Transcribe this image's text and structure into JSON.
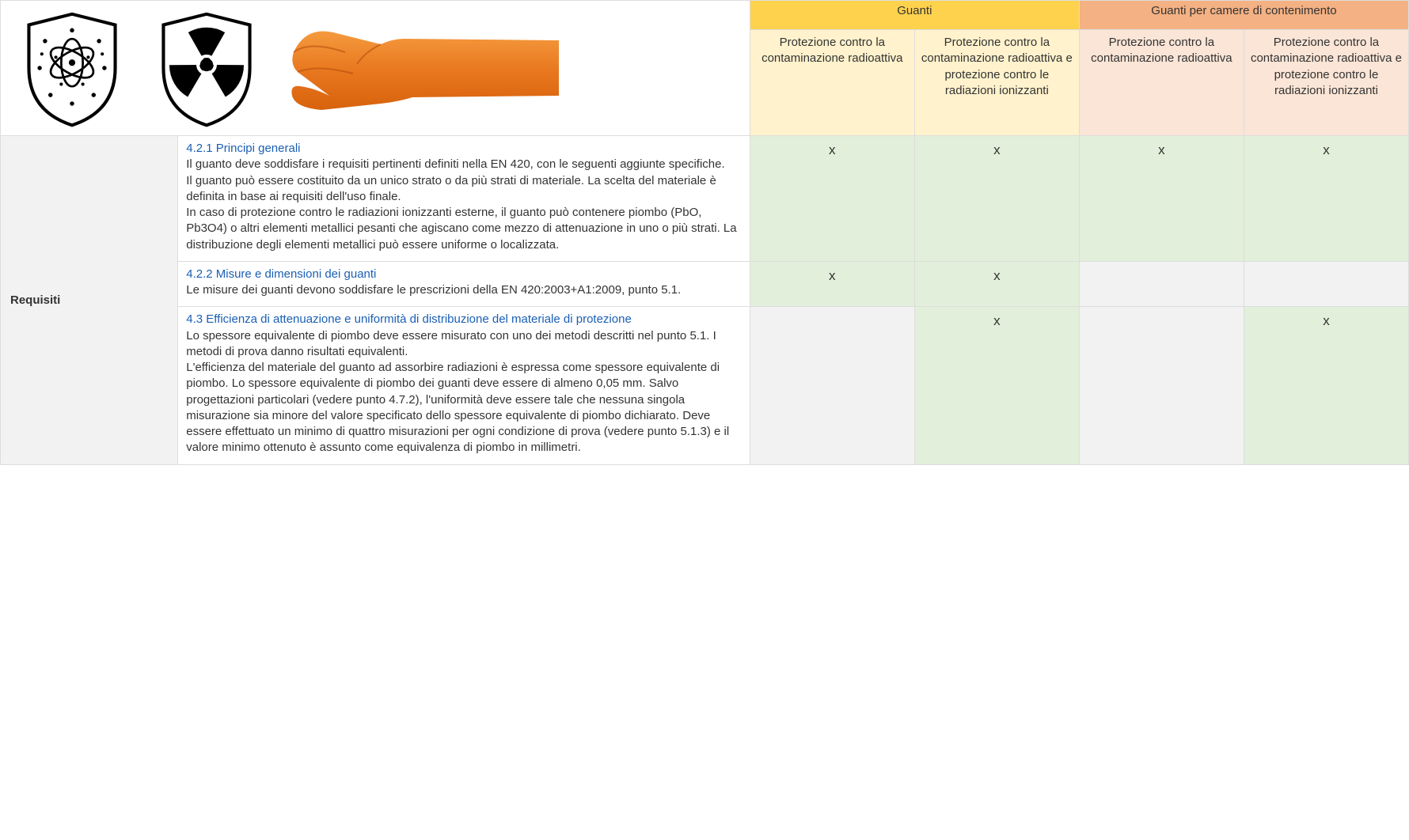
{
  "colors": {
    "group1_bg": "#ffd24d",
    "group2_bg": "#f4b183",
    "sub1_bg": "#fff2cc",
    "sub2_bg": "#fbe5d6",
    "yes_bg": "#e2efda",
    "no_bg": "#f2f2f2",
    "border": "#dddddd",
    "link": "#1a5fb4"
  },
  "columns": {
    "label_w": 180,
    "desc_w": 580,
    "data_w": 167
  },
  "headers": {
    "group1": "Guanti",
    "group2": "Guanti per camere di contenimento",
    "sub_a": "Protezione contro la contaminazione radioattiva",
    "sub_b": "Protezione contro la contaminazione radioattiva e protezione contro le radiazioni ionizzanti"
  },
  "row_label": "Requisiti",
  "mark_char": "x",
  "rows": [
    {
      "title": "4.2.1 Principi generali",
      "body": "Il guanto deve soddisfare i requisiti pertinenti definiti nella EN 420, con le seguenti aggiunte specifiche.\nIl guanto può essere costituito da un unico strato o da più strati di materiale. La scelta del materiale è definita in base ai requisiti dell'uso finale.\nIn caso di protezione contro le radiazioni ionizzanti esterne, il guanto può contenere piombo (PbO, Pb3O4) o altri elementi metallici pesanti che agiscano come mezzo di attenuazione in uno o più strati. La distribuzione degli elementi metallici può essere uniforme o localizzata.",
      "cells": [
        true,
        true,
        true,
        true
      ]
    },
    {
      "title": "4.2.2 Misure e dimensioni dei guanti",
      "body": "Le misure dei guanti devono soddisfare le prescrizioni della EN 420:2003+A1:2009, punto 5.1.",
      "cells": [
        true,
        true,
        false,
        false
      ]
    },
    {
      "title": "4.3 Efficienza di attenuazione e uniformità di distribuzione del materiale di protezione",
      "body": "Lo spessore equivalente di piombo deve essere misurato con uno dei metodi descritti nel punto 5.1. I metodi di prova danno risultati equivalenti.\nL'efficienza del materiale del guanto ad assorbire radiazioni è espressa come spessore equivalente di piombo. Lo spessore equivalente di piombo dei guanti deve essere di almeno 0,05 mm. Salvo progettazioni particolari (vedere punto 4.7.2), l'uniformità deve essere tale che nessuna singola misurazione sia minore del valore specificato dello spessore equivalente di piombo dichiarato. Deve essere effettuato un minimo di quattro misurazioni per ogni condizione di prova (vedere punto 5.1.3) e il valore minimo ottenuto è assunto come equivalenza di piombo in millimetri.",
      "cells": [
        false,
        true,
        false,
        true
      ]
    }
  ]
}
